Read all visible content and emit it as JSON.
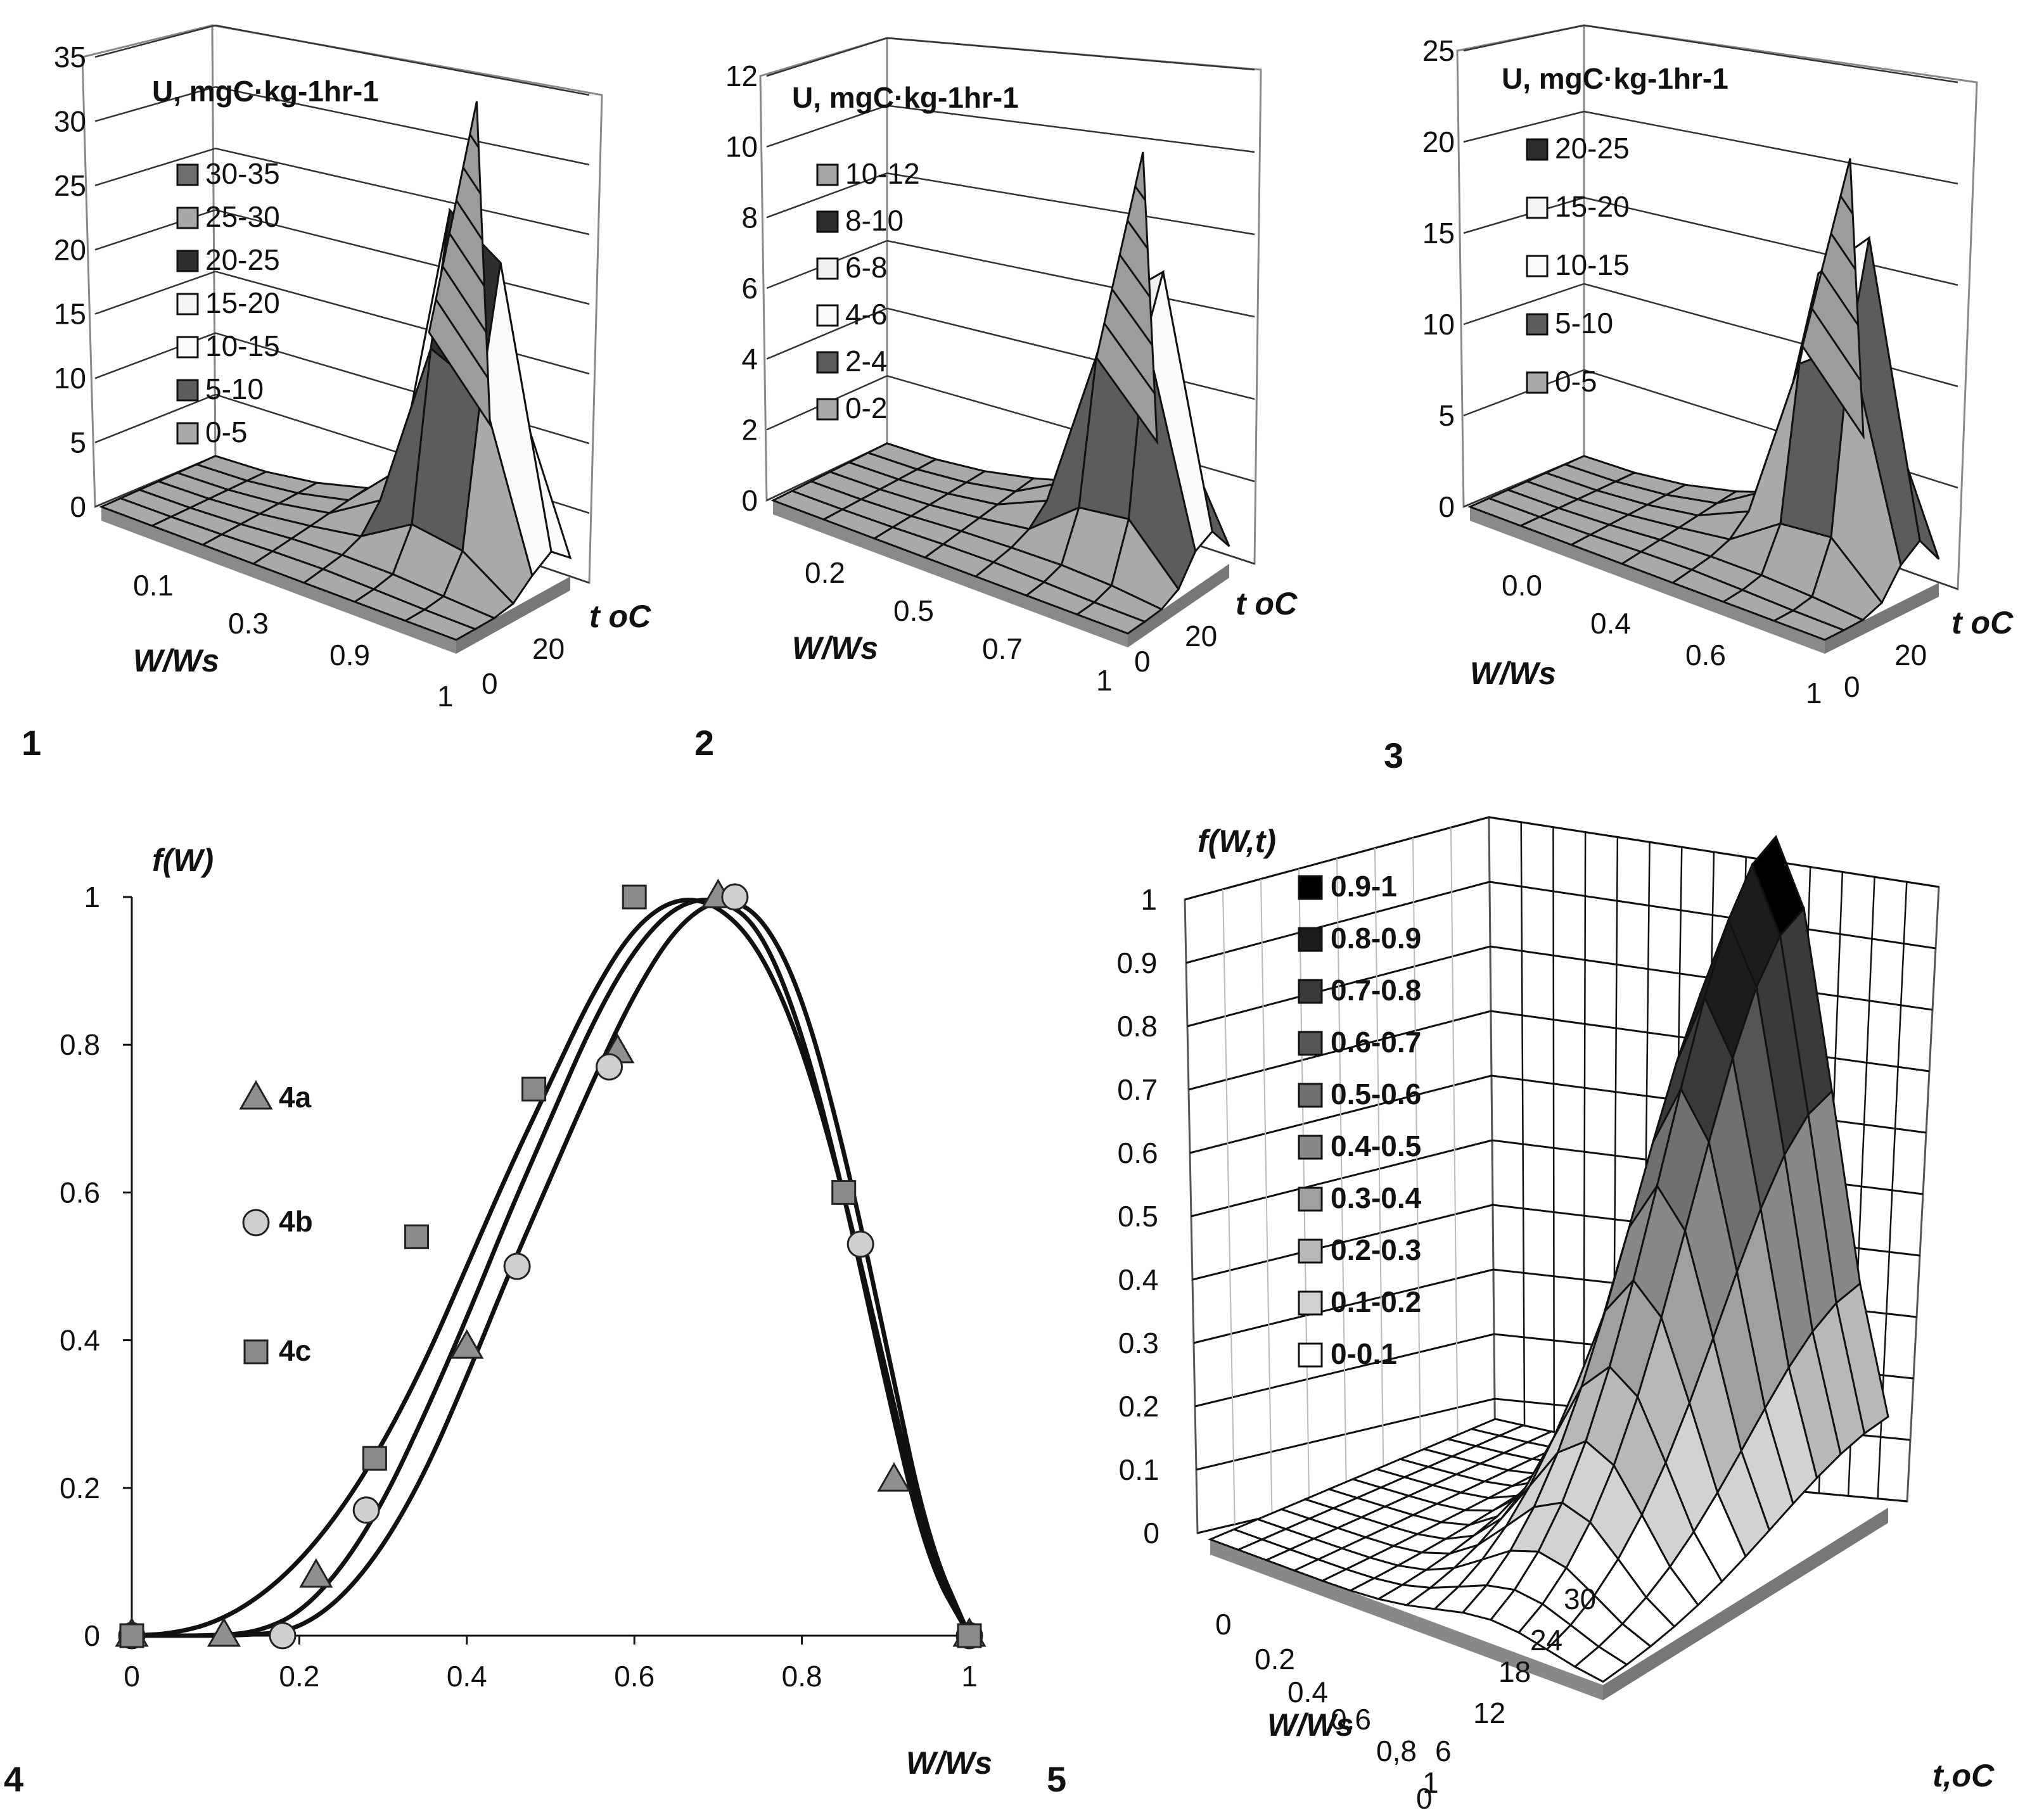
{
  "chart_data": [
    {
      "id": "1",
      "type": "surface3d",
      "panel_label": "1",
      "title": "U, mgC·kg-1hr-1",
      "z_ticks": [
        "0",
        "5",
        "10",
        "15",
        "20",
        "25",
        "30",
        "35"
      ],
      "zlim": [
        0,
        35
      ],
      "x_label": "W/Ws",
      "x_ticks": [
        "0.1",
        "0.3",
        "0.9",
        "1"
      ],
      "y_label": "t oC",
      "y_ticks": [
        "0",
        "20"
      ],
      "legend": [
        "30-35",
        "25-30",
        "20-25",
        "15-20",
        "10-15",
        "5-10",
        "0-5"
      ],
      "legend_colors": [
        "#6f6f6f",
        "#a7a7a7",
        "#2e2e2e",
        "#f3f3f3",
        "#fbfbfb",
        "#5c5c5c",
        "#a9a9a9"
      ],
      "peak": 32
    },
    {
      "id": "2",
      "type": "surface3d",
      "panel_label": "2",
      "title": "U, mgC·kg-1hr-1",
      "z_ticks": [
        "0",
        "2",
        "4",
        "6",
        "8",
        "10",
        "12"
      ],
      "zlim": [
        0,
        12
      ],
      "x_label": "W/Ws",
      "x_ticks": [
        "0.2",
        "0.5",
        "0.7",
        "1"
      ],
      "y_label": "t oC",
      "y_ticks": [
        "0",
        "20"
      ],
      "legend": [
        "10-12",
        "8-10",
        "6-8",
        "4-6",
        "2-4",
        "0-2"
      ],
      "legend_colors": [
        "#a7a7a7",
        "#2e2e2e",
        "#f0f0f0",
        "#fbfbfb",
        "#5c5c5c",
        "#a9a9a9"
      ],
      "peak": 10
    },
    {
      "id": "3",
      "type": "surface3d",
      "panel_label": "3",
      "title": "U, mgC·kg-1hr-1",
      "z_ticks": [
        "0",
        "5",
        "10",
        "15",
        "20",
        "25"
      ],
      "zlim": [
        0,
        25
      ],
      "x_label": "W/Ws",
      "x_ticks": [
        "0.0",
        "0.4",
        "0.6",
        "1"
      ],
      "y_label": "t oC",
      "y_ticks": [
        "0",
        "20"
      ],
      "legend": [
        "20-25",
        "15-20",
        "10-15",
        "5-10",
        "0-5"
      ],
      "legend_colors": [
        "#2e2e2e",
        "#f3f3f3",
        "#fbfbfb",
        "#5c5c5c",
        "#a9a9a9"
      ],
      "peak": 22
    },
    {
      "id": "4",
      "type": "scatter",
      "panel_label": "4",
      "ylabel": "f(W)",
      "xlabel": "W/Ws",
      "xlim": [
        0,
        1
      ],
      "ylim": [
        0,
        1
      ],
      "x_ticks": [
        "0",
        "0.2",
        "0.4",
        "0.6",
        "0.8",
        "1"
      ],
      "y_ticks": [
        "0",
        "0.2",
        "0.4",
        "0.6",
        "0.8",
        "1"
      ],
      "series": [
        {
          "name": "4a",
          "marker": "triangle",
          "x": [
            0,
            0.11,
            0.22,
            0.4,
            0.58,
            0.7,
            0.91,
            1.0
          ],
          "y": [
            0,
            0,
            0.08,
            0.39,
            0.79,
            1.0,
            0.21,
            0
          ]
        },
        {
          "name": "4b",
          "marker": "circle",
          "x": [
            0,
            0.18,
            0.28,
            0.46,
            0.57,
            0.72,
            0.87,
            1.0
          ],
          "y": [
            0,
            0,
            0.17,
            0.5,
            0.77,
            1.0,
            0.53,
            0
          ]
        },
        {
          "name": "4c",
          "marker": "square",
          "x": [
            0,
            0.29,
            0.34,
            0.48,
            0.6,
            0.85,
            1.0
          ],
          "y": [
            0,
            0.24,
            0.54,
            0.74,
            1.0,
            0.6,
            0
          ]
        }
      ],
      "fit_curves": [
        {
          "x": [
            0,
            0.05,
            0.1,
            0.15,
            0.2,
            0.25,
            0.3,
            0.35,
            0.4,
            0.45,
            0.5,
            0.55,
            0.6,
            0.65,
            0.7,
            0.75,
            0.8,
            0.85,
            0.9,
            0.95,
            1.0
          ],
          "y": [
            0,
            0.003,
            0.018,
            0.05,
            0.1,
            0.17,
            0.26,
            0.37,
            0.5,
            0.63,
            0.75,
            0.87,
            0.96,
            1.0,
            0.99,
            0.93,
            0.8,
            0.6,
            0.36,
            0.12,
            0
          ]
        },
        {
          "x": [
            0,
            0.1,
            0.15,
            0.2,
            0.25,
            0.3,
            0.35,
            0.4,
            0.45,
            0.5,
            0.55,
            0.6,
            0.65,
            0.7,
            0.75,
            0.8,
            0.85,
            0.9,
            0.95,
            1.0
          ],
          "y": [
            0,
            0,
            0.005,
            0.03,
            0.09,
            0.18,
            0.3,
            0.43,
            0.57,
            0.7,
            0.83,
            0.93,
            0.99,
            1.0,
            0.96,
            0.82,
            0.6,
            0.34,
            0.1,
            0
          ]
        },
        {
          "x": [
            0,
            0.15,
            0.2,
            0.25,
            0.3,
            0.35,
            0.4,
            0.45,
            0.5,
            0.55,
            0.6,
            0.65,
            0.7,
            0.75,
            0.8,
            0.85,
            0.9,
            0.95,
            1.0
          ],
          "y": [
            0,
            0,
            0.01,
            0.05,
            0.12,
            0.22,
            0.35,
            0.49,
            0.62,
            0.75,
            0.87,
            0.96,
            1.0,
            0.98,
            0.87,
            0.66,
            0.4,
            0.13,
            0
          ]
        }
      ]
    },
    {
      "id": "5",
      "type": "surface3d",
      "panel_label": "5",
      "title": "f(W,t)",
      "z_ticks": [
        "0",
        "0.1",
        "0.2",
        "0.3",
        "0.4",
        "0.5",
        "0.6",
        "0.7",
        "0.8",
        "0.9",
        "1"
      ],
      "zlim": [
        0,
        1
      ],
      "x_label": "W/Ws",
      "x_ticks": [
        "0",
        "0.2",
        "0.4",
        "0.6",
        "0,8",
        "1"
      ],
      "y_label": "t,oC",
      "y_ticks": [
        "0",
        "6",
        "12",
        "18",
        "24",
        "30"
      ],
      "legend": [
        "0.9-1",
        "0.8-0.9",
        "0.7-0.8",
        "0.6-0.7",
        "0.5-0.6",
        "0.4-0.5",
        "0.3-0.4",
        "0.2-0.3",
        "0.1-0.2",
        "0-0.1"
      ],
      "legend_colors": [
        "#000000",
        "#1c1c1c",
        "#3a3a3a",
        "#555555",
        "#707070",
        "#888888",
        "#a0a0a0",
        "#b8b8b8",
        "#d2d2d2",
        "#ffffff"
      ]
    }
  ]
}
